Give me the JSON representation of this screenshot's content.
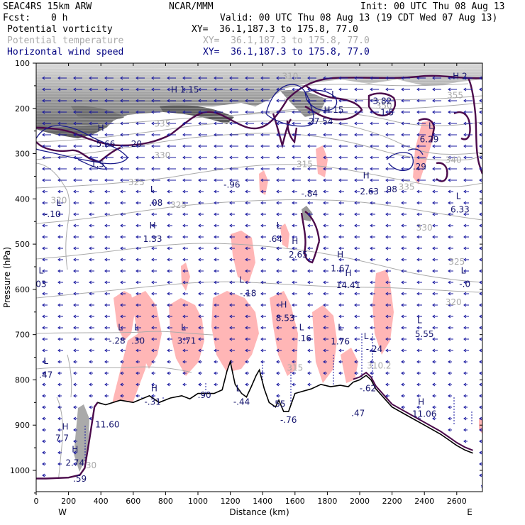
{
  "header": {
    "model": "SEAC4RS 15km ARW",
    "org": "NCAR/MMM",
    "init": "Init: 00 UTC Thu 08 Aug 13",
    "fcst_label": "Fcst:",
    "fcst_value": "0 h",
    "valid": "Valid: 00 UTC Thu 08 Aug 13 (19 CDT Wed 07 Aug 13)",
    "fields": [
      {
        "name": "Potential vorticity",
        "xy": "XY=  36.1,187.3 to 175.8, 77.0",
        "color": "#000000"
      },
      {
        "name": "Potential temperature",
        "xy": "XY=  36.1,187.3 to 175.8, 77.0",
        "color": "#aaaaaa"
      },
      {
        "name": "Horizontal wind speed",
        "xy": "XY=  36.1,187.3 to 175.8, 77.0",
        "color": "#000080"
      }
    ]
  },
  "colors": {
    "pv_shading": "#ffb6b6",
    "pv_contour": "#4b0a4b",
    "theta": "#aaaaaa",
    "wind": "#1a1aa0",
    "terrain": "#000000"
  },
  "chart_data": {
    "type": "cross-section",
    "xlabel": "Distance (km)",
    "ylabel": "Pressure (hPa)",
    "xlim": [
      0,
      2700
    ],
    "ylim": [
      1050,
      100
    ],
    "xticks": [
      "0",
      "200",
      "400",
      "600",
      "800",
      "1000",
      "1200",
      "1400",
      "1600",
      "1800",
      "2000",
      "2200",
      "2400",
      "2600"
    ],
    "yticks": [
      "100",
      "200",
      "300",
      "400",
      "500",
      "600",
      "700",
      "800",
      "900",
      "1000"
    ],
    "x_end_labels": {
      "left": "W",
      "right": "E"
    },
    "theta_labels": [
      {
        "text": "310",
        "x": 1570,
        "y": 135
      },
      {
        "text": "335",
        "x": 780,
        "y": 240
      },
      {
        "text": "350",
        "x": 2150,
        "y": 200
      },
      {
        "text": "355",
        "x": 2590,
        "y": 178
      },
      {
        "text": "330",
        "x": 780,
        "y": 310
      },
      {
        "text": "315",
        "x": 1660,
        "y": 330
      },
      {
        "text": "340",
        "x": 2580,
        "y": 320
      },
      {
        "text": "325",
        "x": 620,
        "y": 370
      },
      {
        "text": "335",
        "x": 2290,
        "y": 380
      },
      {
        "text": "320",
        "x": 140,
        "y": 410
      },
      {
        "text": "325",
        "x": 880,
        "y": 420
      },
      {
        "text": "330",
        "x": 2400,
        "y": 470
      },
      {
        "text": "325",
        "x": 2600,
        "y": 545
      },
      {
        "text": "320",
        "x": 2580,
        "y": 635
      },
      {
        "text": "315",
        "x": 1600,
        "y": 780
      },
      {
        "text": "310.2",
        "x": 2120,
        "y": 775
      },
      {
        "text": "30",
        "x": 340,
        "y": 995
      }
    ],
    "extrema_labels": [
      {
        "letter": "H",
        "value": "1.15",
        "x": 920,
        "y": 165
      },
      {
        "letter": "H",
        "value": "2",
        "x": 2620,
        "y": 135
      },
      {
        "letter": "L",
        "value": "",
        "x": 1840,
        "y": 175
      },
      {
        "letter": "H",
        "value": "15",
        "x": 1840,
        "y": 210
      },
      {
        "letter": "",
        "value": "3.82",
        "x": 2140,
        "y": 190
      },
      {
        "letter": "",
        "value": "1.5",
        "x": 2170,
        "y": 215
      },
      {
        "letter": "",
        "value": "27.54",
        "x": 1760,
        "y": 235
      },
      {
        "letter": "H",
        "value": "",
        "x": 400,
        "y": 250
      },
      {
        "letter": "",
        "value": "5.66",
        "x": 430,
        "y": 285
      },
      {
        "letter": "",
        "value": "20",
        "x": 620,
        "y": 285
      },
      {
        "letter": "L",
        "value": "",
        "x": 2440,
        "y": 245
      },
      {
        "letter": "",
        "value": "6.29",
        "x": 2430,
        "y": 275
      },
      {
        "letter": "",
        "value": "1.5",
        "x": 380,
        "y": 330
      },
      {
        "letter": "",
        "value": ".29",
        "x": 2370,
        "y": 335
      },
      {
        "letter": "H",
        "value": "",
        "x": 2040,
        "y": 355
      },
      {
        "letter": "",
        "value": "-.96",
        "x": 1210,
        "y": 375
      },
      {
        "letter": "",
        "value": "-.84",
        "x": 1690,
        "y": 395
      },
      {
        "letter": "",
        "value": "2.63",
        "x": 2060,
        "y": 390
      },
      {
        "letter": "",
        "value": ".98",
        "x": 2190,
        "y": 385
      },
      {
        "letter": "L",
        "value": "",
        "x": 720,
        "y": 385
      },
      {
        "letter": "",
        "value": ".08",
        "x": 740,
        "y": 415
      },
      {
        "letter": "L",
        "value": "",
        "x": 2610,
        "y": 400
      },
      {
        "letter": "",
        "value": "6.33",
        "x": 2620,
        "y": 430
      },
      {
        "letter": "L",
        "value": "",
        "x": 140,
        "y": 415
      },
      {
        "letter": "",
        "value": "-.10",
        "x": 100,
        "y": 440
      },
      {
        "letter": "H",
        "value": "",
        "x": 720,
        "y": 465
      },
      {
        "letter": "",
        "value": "1.33",
        "x": 720,
        "y": 495
      },
      {
        "letter": "L",
        "value": "",
        "x": 1500,
        "y": 465
      },
      {
        "letter": "",
        "value": ".64",
        "x": 1480,
        "y": 495
      },
      {
        "letter": "H",
        "value": "",
        "x": 1600,
        "y": 500
      },
      {
        "letter": "",
        "value": "2.65",
        "x": 1620,
        "y": 530
      },
      {
        "letter": "H",
        "value": "",
        "x": 1880,
        "y": 530
      },
      {
        "letter": "",
        "value": "1.67",
        "x": 1880,
        "y": 560
      },
      {
        "letter": "L",
        "value": "",
        "x": 30,
        "y": 565
      },
      {
        "letter": "",
        "value": "03",
        "x": 30,
        "y": 595
      },
      {
        "letter": "H",
        "value": "",
        "x": 1930,
        "y": 570
      },
      {
        "letter": "",
        "value": "14.41",
        "x": 1930,
        "y": 597
      },
      {
        "letter": "L",
        "value": "",
        "x": 2640,
        "y": 565
      },
      {
        "letter": "",
        "value": "-.0",
        "x": 2650,
        "y": 595
      },
      {
        "letter": "L",
        "value": "",
        "x": 1270,
        "y": 585
      },
      {
        "letter": "",
        "value": "-.18",
        "x": 1310,
        "y": 615
      },
      {
        "letter": "H",
        "value": "",
        "x": 1530,
        "y": 640
      },
      {
        "letter": "",
        "value": "8.53",
        "x": 1540,
        "y": 670
      },
      {
        "letter": "L",
        "value": "",
        "x": 2370,
        "y": 675
      },
      {
        "letter": "",
        "value": "5.55",
        "x": 2400,
        "y": 705
      },
      {
        "letter": "L",
        "value": "",
        "x": 520,
        "y": 690
      },
      {
        "letter": "L",
        "value": "",
        "x": 620,
        "y": 690
      },
      {
        "letter": "",
        "value": "-.28",
        "x": 500,
        "y": 720
      },
      {
        "letter": "",
        "value": ".30",
        "x": 630,
        "y": 720
      },
      {
        "letter": "L",
        "value": "",
        "x": 910,
        "y": 690
      },
      {
        "letter": "",
        "value": "3.71",
        "x": 930,
        "y": 720
      },
      {
        "letter": "L",
        "value": "",
        "x": 1640,
        "y": 690
      },
      {
        "letter": "",
        "value": ".16",
        "x": 1660,
        "y": 715
      },
      {
        "letter": "L",
        "value": "",
        "x": 1880,
        "y": 690
      },
      {
        "letter": "",
        "value": "1.76",
        "x": 1880,
        "y": 722
      },
      {
        "letter": "L",
        "value": "",
        "x": 2040,
        "y": 710
      },
      {
        "letter": "",
        "value": "-.24",
        "x": 2090,
        "y": 738
      },
      {
        "letter": "L",
        "value": "",
        "x": 60,
        "y": 765
      },
      {
        "letter": "",
        "value": ".47",
        "x": 60,
        "y": 795
      },
      {
        "letter": "H",
        "value": "",
        "x": 730,
        "y": 825
      },
      {
        "letter": "",
        "value": "-.31",
        "x": 720,
        "y": 855
      },
      {
        "letter": "",
        "value": ".90",
        "x": 1040,
        "y": 840
      },
      {
        "letter": "L",
        "value": "",
        "x": 1250,
        "y": 825
      },
      {
        "letter": "",
        "value": "-.44",
        "x": 1270,
        "y": 855
      },
      {
        "letter": "",
        "value": "-.62",
        "x": 2050,
        "y": 825
      },
      {
        "letter": "",
        "value": ".47",
        "x": 1990,
        "y": 880
      },
      {
        "letter": "",
        "value": ".55",
        "x": 1500,
        "y": 860
      },
      {
        "letter": "",
        "value": "-.76",
        "x": 1560,
        "y": 895
      },
      {
        "letter": "H",
        "value": "",
        "x": 2380,
        "y": 855
      },
      {
        "letter": "",
        "value": "11.06",
        "x": 2400,
        "y": 882
      },
      {
        "letter": "",
        "value": "11.60",
        "x": 440,
        "y": 905
      },
      {
        "letter": "H",
        "value": "",
        "x": 180,
        "y": 910
      },
      {
        "letter": "",
        "value": "7.7",
        "x": 160,
        "y": 935
      },
      {
        "letter": "H",
        "value": "",
        "x": 240,
        "y": 960
      },
      {
        "letter": "",
        "value": "2.74",
        "x": 240,
        "y": 990
      },
      {
        "letter": "",
        "value": ".59",
        "x": 270,
        "y": 1025
      }
    ]
  }
}
